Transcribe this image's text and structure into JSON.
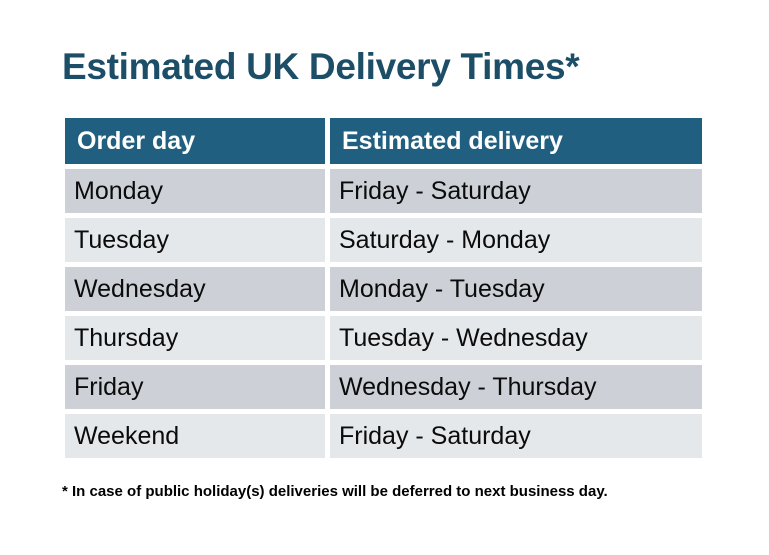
{
  "title": "Estimated UK Delivery Times*",
  "table": {
    "columns": [
      "Order day",
      "Estimated delivery"
    ],
    "rows": [
      [
        "Monday",
        "Friday - Saturday"
      ],
      [
        "Tuesday",
        "Saturday - Monday"
      ],
      [
        "Wednesday",
        "Monday - Tuesday"
      ],
      [
        "Thursday",
        "Tuesday - Wednesday"
      ],
      [
        "Friday",
        "Wednesday - Thursday"
      ],
      [
        "Weekend",
        "Friday - Saturday"
      ]
    ]
  },
  "footnote": "* In case of public holiday(s) deliveries will be deferred to next business day.",
  "colors": {
    "background": "#FFFFFF",
    "title_text": "#1D4E68",
    "header_bg": "#215F80",
    "header_text": "#FFFFFF",
    "row_dark": "#CDD1D7",
    "row_light": "#E5E8EB",
    "body_text": "#0B0B0B",
    "footnote_text": "#000000"
  }
}
